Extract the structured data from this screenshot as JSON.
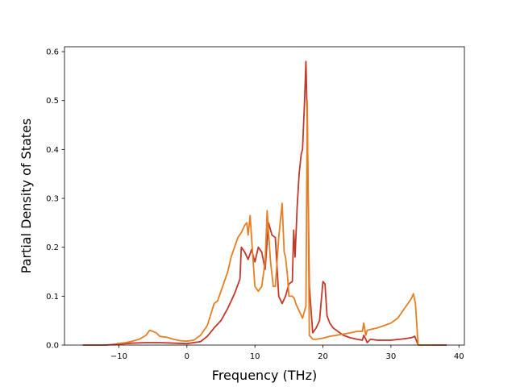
{
  "chart_data": {
    "type": "line",
    "title": "",
    "xlabel": "Frequency (THz)",
    "ylabel": "Partial Density of States",
    "xlim": [
      -18.0,
      40.8
    ],
    "ylim": [
      0.0,
      0.61
    ],
    "xticks": [
      -10,
      0,
      10,
      20,
      30,
      40
    ],
    "xtick_labels": [
      "−10",
      "0",
      "10",
      "20",
      "30",
      "40"
    ],
    "yticks": [
      0.0,
      0.1,
      0.2,
      0.3,
      0.4,
      0.5,
      0.6
    ],
    "ytick_labels": [
      "0.0",
      "0.1",
      "0.2",
      "0.3",
      "0.4",
      "0.5",
      "0.6"
    ],
    "grid": false,
    "legend": "none",
    "series": [
      {
        "color": "#c0392b",
        "x": [
          -15.3,
          -12.0,
          -10.0,
          -8.0,
          -6.0,
          -4.0,
          -2.0,
          0.0,
          2.0,
          3.0,
          4.0,
          5.0,
          6.0,
          7.0,
          7.8,
          8.0,
          8.5,
          9.0,
          9.5,
          10.0,
          10.5,
          11.0,
          11.5,
          12.0,
          12.5,
          13.0,
          13.5,
          14.0,
          14.5,
          15.0,
          15.5,
          15.7,
          15.9,
          16.2,
          16.5,
          16.8,
          17.0,
          17.3,
          17.5,
          17.7,
          18.0,
          18.5,
          19.0,
          19.5,
          20.0,
          20.3,
          20.6,
          21.0,
          21.5,
          22.0,
          23.0,
          24.0,
          25.0,
          25.8,
          26.0,
          26.3,
          26.5,
          27.0,
          28.0,
          30.0,
          32.0,
          33.0,
          33.5,
          34.0,
          36.0,
          38.2
        ],
        "y": [
          0.0,
          0.0,
          0.002,
          0.004,
          0.005,
          0.005,
          0.004,
          0.003,
          0.007,
          0.018,
          0.035,
          0.05,
          0.075,
          0.105,
          0.135,
          0.2,
          0.19,
          0.175,
          0.195,
          0.17,
          0.2,
          0.19,
          0.155,
          0.25,
          0.225,
          0.22,
          0.1,
          0.085,
          0.1,
          0.125,
          0.13,
          0.235,
          0.18,
          0.28,
          0.35,
          0.39,
          0.4,
          0.5,
          0.58,
          0.45,
          0.12,
          0.025,
          0.035,
          0.05,
          0.13,
          0.125,
          0.06,
          0.045,
          0.035,
          0.03,
          0.02,
          0.015,
          0.012,
          0.01,
          0.02,
          0.012,
          0.005,
          0.012,
          0.01,
          0.01,
          0.013,
          0.015,
          0.018,
          0.0,
          0.0,
          0.0
        ]
      },
      {
        "color": "#e67e22",
        "x": [
          -10.3,
          -9.0,
          -8.0,
          -7.0,
          -6.0,
          -5.5,
          -5.0,
          -4.5,
          -4.0,
          -3.0,
          -2.0,
          -1.0,
          0.0,
          1.0,
          2.0,
          3.0,
          4.0,
          4.5,
          5.0,
          6.0,
          6.5,
          7.0,
          7.5,
          8.0,
          8.5,
          8.8,
          9.0,
          9.3,
          9.5,
          9.7,
          10.0,
          10.5,
          11.0,
          11.5,
          11.8,
          12.0,
          12.3,
          12.7,
          13.0,
          13.5,
          14.0,
          14.3,
          14.5,
          14.8,
          15.0,
          15.5,
          15.8,
          16.0,
          16.5,
          17.0,
          17.5,
          17.7,
          18.0,
          18.5,
          19.0,
          20.0,
          21.0,
          22.0,
          24.0,
          25.0,
          25.8,
          26.0,
          26.3,
          26.5,
          27.0,
          28.0,
          30.0,
          31.0,
          32.0,
          33.0,
          33.3,
          33.6,
          34.0,
          36.0
        ],
        "y": [
          0.003,
          0.005,
          0.008,
          0.012,
          0.02,
          0.03,
          0.028,
          0.025,
          0.018,
          0.016,
          0.012,
          0.009,
          0.008,
          0.01,
          0.02,
          0.04,
          0.085,
          0.09,
          0.11,
          0.15,
          0.18,
          0.2,
          0.22,
          0.23,
          0.245,
          0.25,
          0.225,
          0.265,
          0.22,
          0.18,
          0.12,
          0.11,
          0.12,
          0.17,
          0.275,
          0.23,
          0.17,
          0.12,
          0.12,
          0.22,
          0.29,
          0.19,
          0.18,
          0.14,
          0.1,
          0.1,
          0.095,
          0.085,
          0.07,
          0.055,
          0.08,
          0.5,
          0.02,
          0.012,
          0.012,
          0.014,
          0.018,
          0.02,
          0.025,
          0.028,
          0.028,
          0.045,
          0.02,
          0.03,
          0.032,
          0.035,
          0.045,
          0.055,
          0.075,
          0.095,
          0.105,
          0.085,
          0.0,
          0.0
        ]
      }
    ]
  }
}
